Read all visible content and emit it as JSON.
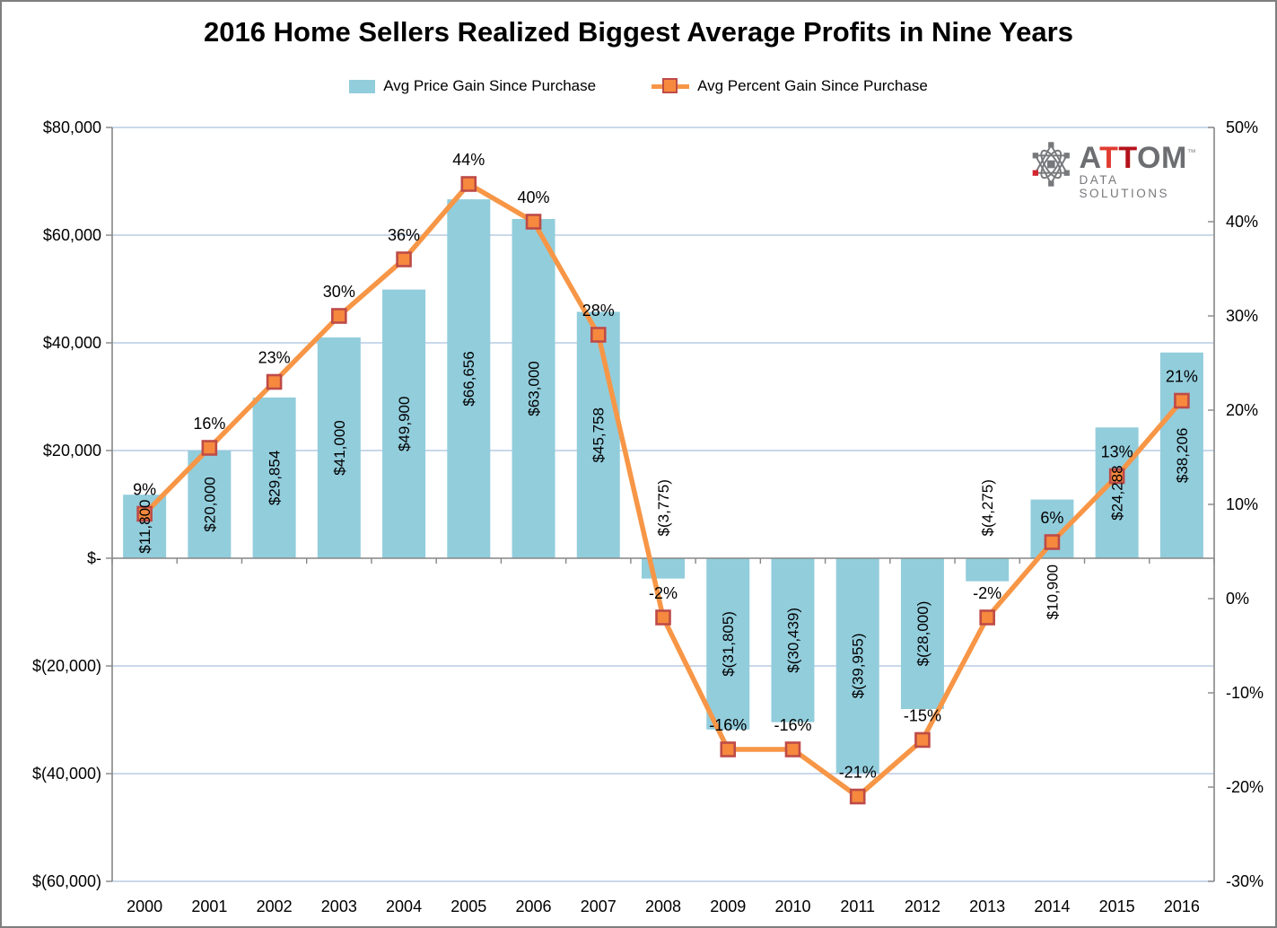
{
  "title": "2016 Home Sellers Realized Biggest Average Profits in Nine Years",
  "legend": [
    {
      "label": "Avg Price Gain Since Purchase"
    },
    {
      "label": "Avg Percent Gain Since Purchase"
    }
  ],
  "logo": {
    "letter_a": "A",
    "letter_t1": "T",
    "letter_t2": "T",
    "letters_om": "OM",
    "trademark": "™",
    "subtitle": "DATA SOLUTIONS"
  },
  "colors": {
    "bar": "#92CDDC",
    "line": "#F79646",
    "marker_fill": "#F6893D",
    "marker_border": "#BE4B48",
    "gridline": "#B8CCE4",
    "axis": "#868686",
    "text": "#000000",
    "frame_border": "#7F7F7F"
  },
  "chart_data": {
    "type": "combo-bar-line",
    "grid": true,
    "legend_position": "top",
    "categories": [
      "2000",
      "2001",
      "2002",
      "2003",
      "2004",
      "2005",
      "2006",
      "2007",
      "2008",
      "2009",
      "2010",
      "2011",
      "2012",
      "2013",
      "2014",
      "2015",
      "2016"
    ],
    "series": [
      {
        "name": "Avg Price Gain Since Purchase",
        "type": "bar",
        "axis": "left",
        "values": [
          11800,
          20000,
          29854,
          41000,
          49900,
          66656,
          63000,
          45758,
          -3775,
          -31805,
          -30439,
          -39955,
          -28000,
          -4275,
          10900,
          24288,
          38206
        ],
        "data_labels": [
          "$11,800",
          "$20,000",
          "$29,854",
          "$41,000",
          "$49,900",
          "$66,656",
          "$63,000",
          "$45,758",
          "$(3,775)",
          "$(31,805)",
          "$(30,439)",
          "$(39,955)",
          "$(28,000)",
          "$(4,275)",
          "$10,900",
          "$24,288",
          "$38,206"
        ]
      },
      {
        "name": "Avg Percent Gain Since Purchase",
        "type": "line",
        "axis": "right",
        "values": [
          9,
          16,
          23,
          30,
          36,
          44,
          40,
          28,
          -2,
          -16,
          -16,
          -21,
          -15,
          -2,
          6,
          13,
          21
        ],
        "data_labels": [
          "9%",
          "16%",
          "23%",
          "30%",
          "36%",
          "44%",
          "40%",
          "28%",
          "-2%",
          "-16%",
          "-16%",
          "-21%",
          "-15%",
          "-2%",
          "6%",
          "13%",
          "21%"
        ]
      }
    ],
    "left_axis": {
      "min": -60000,
      "max": 80000,
      "tick_values": [
        80000,
        60000,
        40000,
        20000,
        0,
        -20000,
        -40000,
        -60000
      ],
      "tick_labels": [
        "$80,000",
        "$60,000",
        "$40,000",
        "$20,000",
        "$-",
        "$(20,000)",
        "$(40,000)",
        "$(60,000)"
      ]
    },
    "right_axis": {
      "min": -30,
      "max": 50,
      "tick_values": [
        50,
        40,
        30,
        20,
        10,
        0,
        -10,
        -20,
        -30
      ],
      "tick_labels": [
        "50%",
        "40%",
        "30%",
        "20%",
        "10%",
        "0%",
        "-10%",
        "-20%",
        "-30%"
      ]
    }
  }
}
